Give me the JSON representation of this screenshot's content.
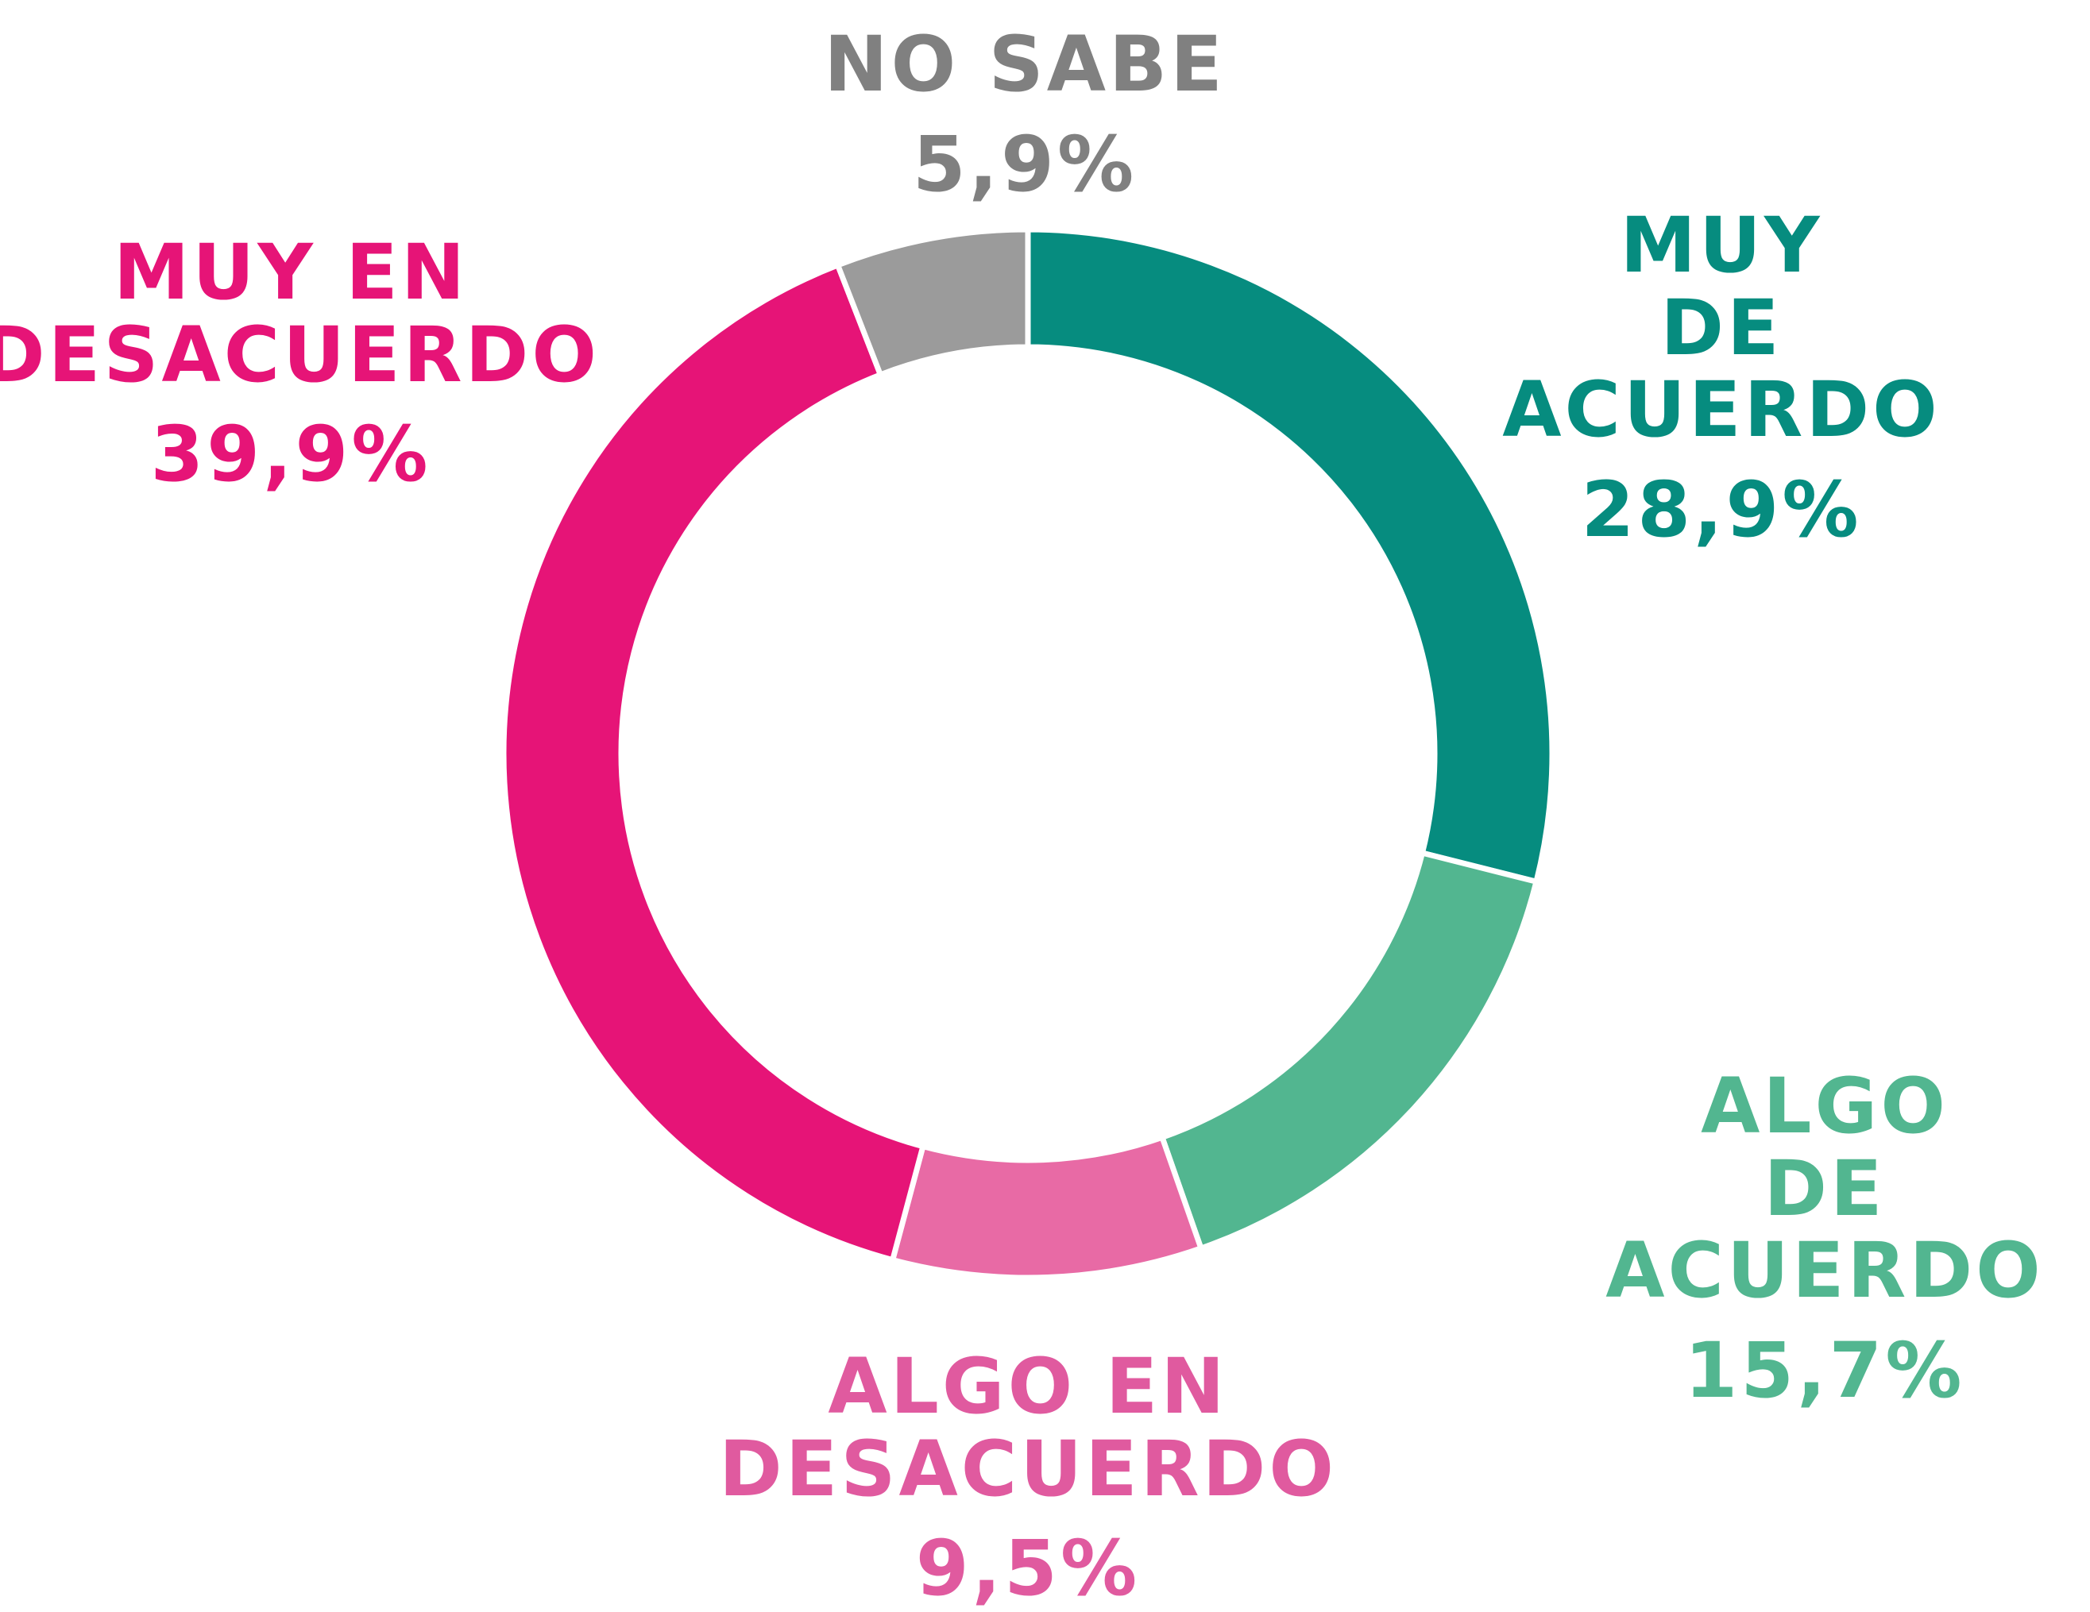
{
  "chart_data": {
    "type": "donut",
    "categories": [
      "MUY\nDE ACUERDO",
      "ALGO\nDE ACUERDO",
      "ALGO EN\nDESACUERDO",
      "MUY EN\nDESACUERDO",
      "NO SABE"
    ],
    "values": [
      28.9,
      15.7,
      9.5,
      39.9,
      5.9
    ],
    "value_labels": [
      "28,9%",
      "15,7%",
      "9,5%",
      "39,9%",
      "5,9%"
    ],
    "colors": [
      "#068c7f",
      "#52b690",
      "#e86aa5",
      "#e61477",
      "#9b9b9b"
    ],
    "label_colors": [
      "#068c7f",
      "#52b690",
      "#e05a9f",
      "#e61477",
      "#808080"
    ]
  }
}
